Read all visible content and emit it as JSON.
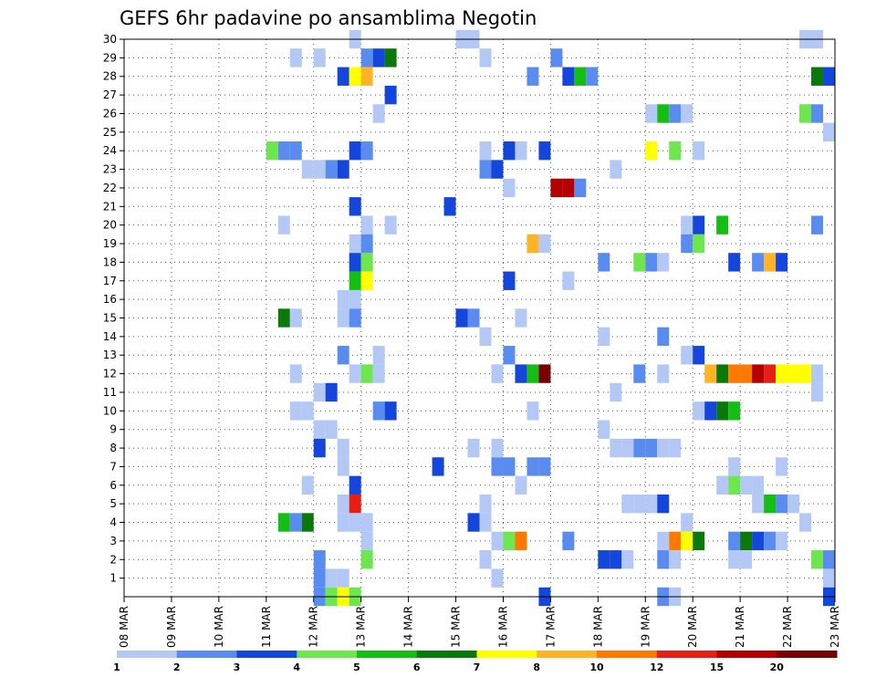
{
  "chart_data": {
    "type": "heatmap",
    "title": "GEFS 6hr padavine po ansamblima Negotin",
    "x_tick_labels": [
      "08 MAR",
      "09 MAR",
      "10 MAR",
      "11 MAR",
      "12 MAR",
      "13 MAR",
      "14 MAR",
      "15 MAR",
      "16 MAR",
      "17 MAR",
      "18 MAR",
      "19 MAR",
      "20 MAR",
      "21 MAR",
      "22 MAR",
      "23 MAR"
    ],
    "y_tick_labels": [
      "1",
      "2",
      "3",
      "4",
      "5",
      "6",
      "7",
      "8",
      "9",
      "10",
      "11",
      "12",
      "13",
      "14",
      "15",
      "16",
      "17",
      "18",
      "19",
      "20",
      "21",
      "22",
      "23",
      "24",
      "25",
      "26",
      "27",
      "28",
      "29",
      "30"
    ],
    "time_steps_per_day": 4,
    "grid": "dotted",
    "colorbar": {
      "labels": [
        "1",
        "2",
        "3",
        "4",
        "5",
        "6",
        "7",
        "8",
        "10",
        "12",
        "15",
        "20"
      ],
      "colors": [
        "#b4c8f5",
        "#5a8cf0",
        "#1446dc",
        "#6ee650",
        "#14be14",
        "#0a780a",
        "#ffff00",
        "#ffb428",
        "#ff7800",
        "#e61e14",
        "#b40000",
        "#780000"
      ]
    },
    "cells": [
      [
        0,
        30,
        12.875,
        1
      ],
      [
        0,
        30,
        15.125,
        1
      ],
      [
        0,
        30,
        15.375,
        1
      ],
      [
        0,
        30,
        22.375,
        1
      ],
      [
        0,
        30,
        22.625,
        1
      ],
      [
        0,
        29,
        11.625,
        1
      ],
      [
        0,
        29,
        12.125,
        1
      ],
      [
        0,
        29,
        13.125,
        2
      ],
      [
        0,
        29,
        13.375,
        3
      ],
      [
        0,
        29,
        13.625,
        6
      ],
      [
        0,
        29,
        15.625,
        1
      ],
      [
        0,
        29,
        17.125,
        2
      ],
      [
        0,
        28,
        12.625,
        3
      ],
      [
        0,
        28,
        12.875,
        7
      ],
      [
        0,
        28,
        13.125,
        8
      ],
      [
        0,
        28,
        16.625,
        2
      ],
      [
        0,
        28,
        17.375,
        3
      ],
      [
        0,
        28,
        17.625,
        5
      ],
      [
        0,
        28,
        17.875,
        2
      ],
      [
        0,
        28,
        22.625,
        6
      ],
      [
        0,
        28,
        22.875,
        3
      ],
      [
        0,
        27,
        13.625,
        3
      ],
      [
        0,
        26,
        13.375,
        1
      ],
      [
        0,
        26,
        19.125,
        1
      ],
      [
        0,
        26,
        19.375,
        5
      ],
      [
        0,
        26,
        19.625,
        2
      ],
      [
        0,
        26,
        19.875,
        1
      ],
      [
        0,
        26,
        22.375,
        4
      ],
      [
        0,
        26,
        22.625,
        2
      ],
      [
        0,
        25,
        22.875,
        1
      ],
      [
        0,
        24,
        11.125,
        4
      ],
      [
        0,
        24,
        11.375,
        2
      ],
      [
        0,
        24,
        11.625,
        2
      ],
      [
        0,
        24,
        12.875,
        3
      ],
      [
        0,
        24,
        13.125,
        2
      ],
      [
        0,
        24,
        15.625,
        1
      ],
      [
        0,
        24,
        16.125,
        3
      ],
      [
        0,
        24,
        16.375,
        1
      ],
      [
        0,
        24,
        16.875,
        3
      ],
      [
        0,
        24,
        19.125,
        7
      ],
      [
        0,
        24,
        19.625,
        4
      ],
      [
        0,
        24,
        20.125,
        1
      ],
      [
        0,
        23,
        11.875,
        1
      ],
      [
        0,
        23,
        12.125,
        1
      ],
      [
        0,
        23,
        12.375,
        2
      ],
      [
        0,
        23,
        12.625,
        3
      ],
      [
        0,
        23,
        15.625,
        2
      ],
      [
        0,
        23,
        15.875,
        3
      ],
      [
        0,
        23,
        18.375,
        1
      ],
      [
        0,
        22,
        16.125,
        1
      ],
      [
        0,
        22,
        17.125,
        11
      ],
      [
        0,
        22,
        17.375,
        11
      ],
      [
        0,
        22,
        17.625,
        2
      ],
      [
        0,
        21,
        12.875,
        3
      ],
      [
        0,
        21,
        14.875,
        3
      ],
      [
        0,
        20,
        11.375,
        1
      ],
      [
        0,
        20,
        13.125,
        1
      ],
      [
        0,
        20,
        13.625,
        1
      ],
      [
        0,
        20,
        19.875,
        1
      ],
      [
        0,
        20,
        20.125,
        3
      ],
      [
        0,
        20,
        20.625,
        5
      ],
      [
        0,
        20,
        22.625,
        2
      ],
      [
        0,
        19,
        12.875,
        1
      ],
      [
        0,
        19,
        13.125,
        2
      ],
      [
        0,
        19,
        16.625,
        8
      ],
      [
        0,
        19,
        16.875,
        1
      ],
      [
        0,
        19,
        19.875,
        2
      ],
      [
        0,
        19,
        20.125,
        4
      ],
      [
        0,
        18,
        12.875,
        3
      ],
      [
        0,
        18,
        13.125,
        4
      ],
      [
        0,
        18,
        18.125,
        2
      ],
      [
        0,
        18,
        18.875,
        4
      ],
      [
        0,
        18,
        19.125,
        2
      ],
      [
        0,
        18,
        19.375,
        1
      ],
      [
        0,
        18,
        20.875,
        3
      ],
      [
        0,
        18,
        21.375,
        2
      ],
      [
        0,
        18,
        21.625,
        8
      ],
      [
        0,
        18,
        21.875,
        3
      ],
      [
        0,
        17,
        12.875,
        5
      ],
      [
        0,
        17,
        13.125,
        7
      ],
      [
        0,
        17,
        16.125,
        3
      ],
      [
        0,
        17,
        17.375,
        1
      ],
      [
        0,
        16,
        12.625,
        1
      ],
      [
        0,
        16,
        12.875,
        1
      ],
      [
        0,
        15,
        11.375,
        6
      ],
      [
        0,
        15,
        11.625,
        1
      ],
      [
        0,
        15,
        12.625,
        1
      ],
      [
        0,
        15,
        12.875,
        2
      ],
      [
        0,
        15,
        15.125,
        3
      ],
      [
        0,
        15,
        15.375,
        2
      ],
      [
        0,
        15,
        16.375,
        1
      ],
      [
        0,
        14,
        15.625,
        1
      ],
      [
        0,
        14,
        18.125,
        1
      ],
      [
        0,
        14,
        19.375,
        2
      ],
      [
        0,
        13,
        12.625,
        2
      ],
      [
        0,
        13,
        13.375,
        1
      ],
      [
        0,
        13,
        16.125,
        2
      ],
      [
        0,
        13,
        19.875,
        1
      ],
      [
        0,
        13,
        20.125,
        3
      ],
      [
        0,
        12,
        11.625,
        1
      ],
      [
        0,
        12,
        12.875,
        1
      ],
      [
        0,
        12,
        13.125,
        4
      ],
      [
        0,
        12,
        13.375,
        1
      ],
      [
        0,
        12,
        15.875,
        1
      ],
      [
        0,
        12,
        16.375,
        3
      ],
      [
        0,
        12,
        16.625,
        5
      ],
      [
        0,
        12,
        16.875,
        12
      ],
      [
        0,
        12,
        18.875,
        2
      ],
      [
        0,
        12,
        19.375,
        1
      ],
      [
        0,
        12,
        20.375,
        8
      ],
      [
        0,
        12,
        20.625,
        6
      ],
      [
        0,
        12,
        20.875,
        9
      ],
      [
        0,
        12,
        21.125,
        9
      ],
      [
        0,
        12,
        21.375,
        11
      ],
      [
        0,
        12,
        21.625,
        10
      ],
      [
        0,
        12,
        21.875,
        7
      ],
      [
        0,
        12,
        22.125,
        7
      ],
      [
        0,
        12,
        22.375,
        7
      ],
      [
        0,
        12,
        22.625,
        1
      ],
      [
        0,
        11,
        12.125,
        1
      ],
      [
        0,
        11,
        12.375,
        3
      ],
      [
        0,
        11,
        18.375,
        1
      ],
      [
        0,
        11,
        22.625,
        1
      ],
      [
        0,
        10,
        11.625,
        1
      ],
      [
        0,
        10,
        11.875,
        1
      ],
      [
        0,
        10,
        13.375,
        2
      ],
      [
        0,
        10,
        13.625,
        3
      ],
      [
        0,
        10,
        16.625,
        1
      ],
      [
        0,
        10,
        20.125,
        1
      ],
      [
        0,
        10,
        20.375,
        3
      ],
      [
        0,
        10,
        20.625,
        6
      ],
      [
        0,
        10,
        20.875,
        5
      ],
      [
        0,
        9,
        12.125,
        1
      ],
      [
        0,
        9,
        12.375,
        1
      ],
      [
        0,
        9,
        18.125,
        1
      ],
      [
        0,
        8,
        12.125,
        3
      ],
      [
        0,
        8,
        12.625,
        1
      ],
      [
        0,
        8,
        15.375,
        1
      ],
      [
        0,
        8,
        15.875,
        1
      ],
      [
        0,
        8,
        18.375,
        1
      ],
      [
        0,
        8,
        18.625,
        1
      ],
      [
        0,
        8,
        18.875,
        2
      ],
      [
        0,
        8,
        19.125,
        2
      ],
      [
        0,
        8,
        19.375,
        1
      ],
      [
        0,
        8,
        19.625,
        1
      ],
      [
        0,
        7,
        12.625,
        1
      ],
      [
        0,
        7,
        14.625,
        3
      ],
      [
        0,
        7,
        15.875,
        2
      ],
      [
        0,
        7,
        16.125,
        2
      ],
      [
        0,
        7,
        16.625,
        2
      ],
      [
        0,
        7,
        16.875,
        2
      ],
      [
        0,
        7,
        20.875,
        1
      ],
      [
        0,
        7,
        21.875,
        1
      ],
      [
        0,
        6,
        11.875,
        1
      ],
      [
        0,
        6,
        12.875,
        3
      ],
      [
        0,
        6,
        16.375,
        1
      ],
      [
        0,
        6,
        20.625,
        1
      ],
      [
        0,
        6,
        20.875,
        4
      ],
      [
        0,
        6,
        21.125,
        1
      ],
      [
        0,
        6,
        21.375,
        1
      ],
      [
        0,
        5,
        12.625,
        1
      ],
      [
        0,
        5,
        12.875,
        10
      ],
      [
        0,
        5,
        15.625,
        1
      ],
      [
        0,
        5,
        18.625,
        1
      ],
      [
        0,
        5,
        18.875,
        1
      ],
      [
        0,
        5,
        19.125,
        1
      ],
      [
        0,
        5,
        19.375,
        3
      ],
      [
        0,
        5,
        21.375,
        1
      ],
      [
        0,
        5,
        21.625,
        5
      ],
      [
        0,
        5,
        21.875,
        2
      ],
      [
        0,
        5,
        22.125,
        1
      ],
      [
        0,
        4,
        11.375,
        5
      ],
      [
        0,
        4,
        11.625,
        2
      ],
      [
        0,
        4,
        11.875,
        6
      ],
      [
        0,
        4,
        12.625,
        1
      ],
      [
        0,
        4,
        12.875,
        1
      ],
      [
        0,
        4,
        13.125,
        1
      ],
      [
        0,
        4,
        15.375,
        3
      ],
      [
        0,
        4,
        15.625,
        1
      ],
      [
        0,
        4,
        19.875,
        1
      ],
      [
        0,
        4,
        22.375,
        1
      ],
      [
        0,
        3,
        13.125,
        1
      ],
      [
        0,
        3,
        15.875,
        1
      ],
      [
        0,
        3,
        16.125,
        4
      ],
      [
        0,
        3,
        16.375,
        9
      ],
      [
        0,
        3,
        17.375,
        2
      ],
      [
        0,
        3,
        19.375,
        1
      ],
      [
        0,
        3,
        19.625,
        9
      ],
      [
        0,
        3,
        19.875,
        7
      ],
      [
        0,
        3,
        20.125,
        6
      ],
      [
        0,
        3,
        20.875,
        2
      ],
      [
        0,
        3,
        21.125,
        6
      ],
      [
        0,
        3,
        21.375,
        3
      ],
      [
        0,
        3,
        21.625,
        2
      ],
      [
        0,
        3,
        21.875,
        1
      ],
      [
        0,
        2,
        12.125,
        2
      ],
      [
        0,
        2,
        13.125,
        4
      ],
      [
        0,
        2,
        15.625,
        1
      ],
      [
        0,
        2,
        18.125,
        3
      ],
      [
        0,
        2,
        18.375,
        3
      ],
      [
        0,
        2,
        18.625,
        1
      ],
      [
        0,
        2,
        19.375,
        2
      ],
      [
        0,
        2,
        19.625,
        1
      ],
      [
        0,
        2,
        20.875,
        1
      ],
      [
        0,
        2,
        21.125,
        1
      ],
      [
        0,
        2,
        22.625,
        4
      ],
      [
        0,
        2,
        22.875,
        2
      ],
      [
        0,
        1,
        12.125,
        2
      ],
      [
        0,
        1,
        12.375,
        1
      ],
      [
        0,
        1,
        12.625,
        1
      ],
      [
        0,
        1,
        15.875,
        1
      ],
      [
        0,
        1,
        22.875,
        1
      ],
      [
        0,
        0,
        12.125,
        2
      ],
      [
        0,
        0,
        12.375,
        4
      ],
      [
        0,
        0,
        12.625,
        7
      ],
      [
        0,
        0,
        12.875,
        4
      ],
      [
        0,
        0,
        16.875,
        3
      ],
      [
        0,
        0,
        19.375,
        2
      ],
      [
        0,
        0,
        19.625,
        1
      ],
      [
        0,
        0,
        22.875,
        3
      ]
    ]
  }
}
